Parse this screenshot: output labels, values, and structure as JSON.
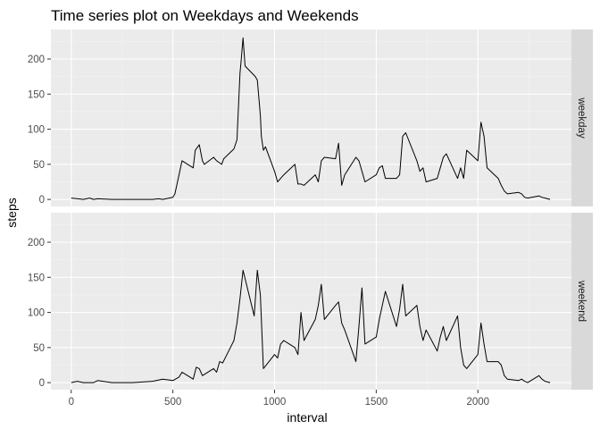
{
  "chart_data": {
    "type": "line",
    "title": "Time series plot on Weekdays and Weekends",
    "xlabel": "interval",
    "ylabel": "steps",
    "xlim": [
      -100,
      2460
    ],
    "ylim": [
      -10,
      242
    ],
    "x_ticks": [
      0,
      500,
      1000,
      1500,
      2000
    ],
    "x_tick_labels": [
      "0",
      "500",
      "1000",
      "1500",
      "2000"
    ],
    "y_ticks": [
      0,
      50,
      100,
      150,
      200
    ],
    "y_tick_labels": [
      "0",
      "50",
      "100",
      "150",
      "200"
    ],
    "grid": true,
    "facets": [
      {
        "label": "weekday",
        "x": [
          0,
          30,
          60,
          90,
          110,
          130,
          200,
          300,
          400,
          430,
          450,
          500,
          510,
          530,
          545,
          600,
          610,
          630,
          645,
          655,
          700,
          715,
          740,
          750,
          800,
          815,
          830,
          835,
          845,
          855,
          905,
          915,
          930,
          935,
          945,
          955,
          1000,
          1015,
          1030,
          1045,
          1100,
          1115,
          1130,
          1145,
          1200,
          1215,
          1230,
          1245,
          1300,
          1315,
          1330,
          1345,
          1400,
          1415,
          1430,
          1445,
          1500,
          1515,
          1530,
          1545,
          1600,
          1615,
          1630,
          1645,
          1700,
          1715,
          1730,
          1745,
          1800,
          1815,
          1830,
          1845,
          1900,
          1915,
          1930,
          1945,
          2000,
          2015,
          2030,
          2045,
          2100,
          2115,
          2130,
          2145,
          2200,
          2215,
          2230,
          2245,
          2300,
          2315,
          2330,
          2355
        ],
        "y": [
          2,
          1,
          0,
          2,
          0,
          1,
          0,
          0,
          0,
          1,
          0,
          3,
          8,
          35,
          55,
          45,
          70,
          78,
          55,
          50,
          60,
          55,
          50,
          58,
          72,
          85,
          180,
          195,
          230,
          190,
          175,
          170,
          120,
          90,
          70,
          75,
          40,
          25,
          30,
          35,
          50,
          22,
          22,
          20,
          35,
          25,
          55,
          60,
          58,
          80,
          20,
          35,
          60,
          55,
          40,
          25,
          35,
          45,
          48,
          30,
          30,
          35,
          90,
          95,
          55,
          40,
          45,
          25,
          30,
          45,
          60,
          65,
          30,
          45,
          30,
          70,
          55,
          110,
          90,
          45,
          30,
          20,
          12,
          8,
          10,
          8,
          3,
          2,
          5,
          3,
          2,
          0
        ]
      },
      {
        "label": "weekend",
        "x": [
          0,
          30,
          60,
          90,
          110,
          130,
          200,
          300,
          400,
          450,
          500,
          530,
          545,
          600,
          615,
          630,
          645,
          700,
          715,
          730,
          745,
          800,
          815,
          830,
          845,
          900,
          915,
          930,
          945,
          1000,
          1015,
          1030,
          1045,
          1100,
          1115,
          1130,
          1145,
          1200,
          1215,
          1230,
          1245,
          1300,
          1315,
          1330,
          1345,
          1400,
          1415,
          1430,
          1445,
          1500,
          1515,
          1530,
          1545,
          1600,
          1615,
          1630,
          1645,
          1700,
          1715,
          1730,
          1745,
          1800,
          1815,
          1830,
          1845,
          1900,
          1915,
          1930,
          1945,
          2000,
          2015,
          2030,
          2045,
          2100,
          2115,
          2130,
          2145,
          2200,
          2215,
          2230,
          2245,
          2300,
          2315,
          2330,
          2355
        ],
        "y": [
          0,
          2,
          0,
          0,
          0,
          3,
          0,
          0,
          2,
          5,
          3,
          8,
          15,
          5,
          22,
          20,
          10,
          20,
          15,
          30,
          28,
          60,
          85,
          120,
          160,
          95,
          160,
          125,
          20,
          40,
          35,
          55,
          60,
          50,
          40,
          100,
          60,
          90,
          110,
          140,
          90,
          110,
          115,
          85,
          75,
          30,
          80,
          135,
          55,
          65,
          90,
          110,
          130,
          80,
          105,
          140,
          95,
          110,
          80,
          60,
          75,
          45,
          65,
          80,
          60,
          95,
          50,
          25,
          20,
          40,
          85,
          55,
          30,
          30,
          25,
          10,
          5,
          3,
          5,
          2,
          0,
          10,
          5,
          2,
          0
        ]
      }
    ]
  }
}
